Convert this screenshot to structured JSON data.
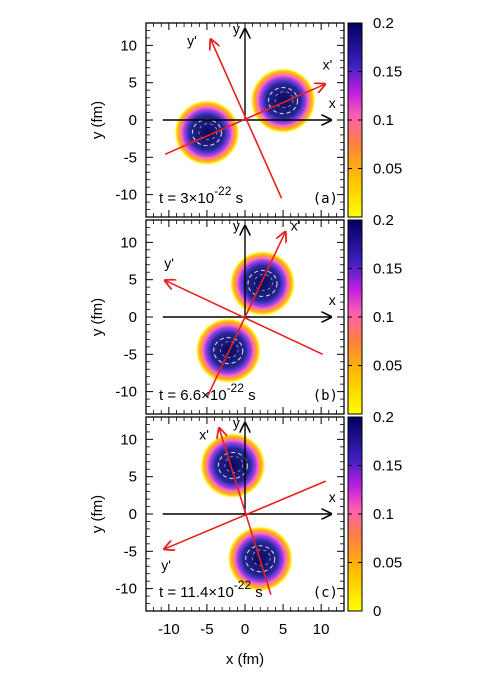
{
  "chart_data": {
    "type": "heatmap",
    "xlabel": "x (fm)",
    "ylabel": "y (fm)",
    "xlim": [
      -13,
      13
    ],
    "ylim": [
      -13,
      13
    ],
    "x_ticks": [
      "-10",
      "-5",
      "0",
      "5",
      "10"
    ],
    "y_ticks": [
      "10",
      "5",
      "0",
      "-5",
      "-10"
    ],
    "colorbar": {
      "range": [
        0,
        0.2
      ],
      "ticks": [
        "0.2",
        "0.15",
        "0.1",
        "0.05",
        "0"
      ],
      "colors": [
        "#ffff00",
        "#ffc000",
        "#ff8040",
        "#ff60c0",
        "#a000e0",
        "#4020c0",
        "#000060"
      ]
    },
    "panels": [
      {
        "tag": "(a)",
        "time_prefix": "t = 3×10",
        "time_exp": "-22",
        "time_unit": " s",
        "fragments": [
          [
            -5,
            -1.7
          ],
          [
            5,
            2.6
          ]
        ],
        "axis_labels": {
          "x": "x",
          "y": "y",
          "xp": "x'",
          "yp": "y'"
        },
        "xprime_end": [
          10.5,
          4.8
        ],
        "xprime_start": [
          -10.5,
          -4.6
        ],
        "yprime_end": [
          -4.5,
          10.8
        ],
        "yprime_start": [
          4.8,
          -10.5
        ]
      },
      {
        "tag": "(b)",
        "time_prefix": "t = 6.6×10",
        "time_exp": "-22",
        "time_unit": " s",
        "fragments": [
          [
            -2.2,
            -4.5
          ],
          [
            2.3,
            4.5
          ]
        ],
        "axis_labels": {
          "x": "x",
          "y": "y",
          "xp": "x'",
          "yp": "y'"
        },
        "xprime_end": [
          5.3,
          11.4
        ],
        "xprime_start": [
          -5.0,
          -10.8
        ],
        "yprime_end": [
          -10.5,
          4.9
        ],
        "yprime_start": [
          10.2,
          -5.0
        ]
      },
      {
        "tag": "(c)",
        "time_prefix": "t = 11.4×10",
        "time_exp": "-22",
        "time_unit": " s",
        "fragments": [
          [
            -1.6,
            6.5
          ],
          [
            2.0,
            -6.0
          ]
        ],
        "axis_labels": {
          "x": "x",
          "y": "y",
          "xp": "x'",
          "yp": "y'"
        },
        "xprime_end": [
          -3.4,
          11.5
        ],
        "xprime_start": [
          3.4,
          -10.8
        ],
        "yprime_end": [
          -10.6,
          -4.7
        ],
        "yprime_start": [
          10.6,
          4.4
        ]
      }
    ]
  }
}
